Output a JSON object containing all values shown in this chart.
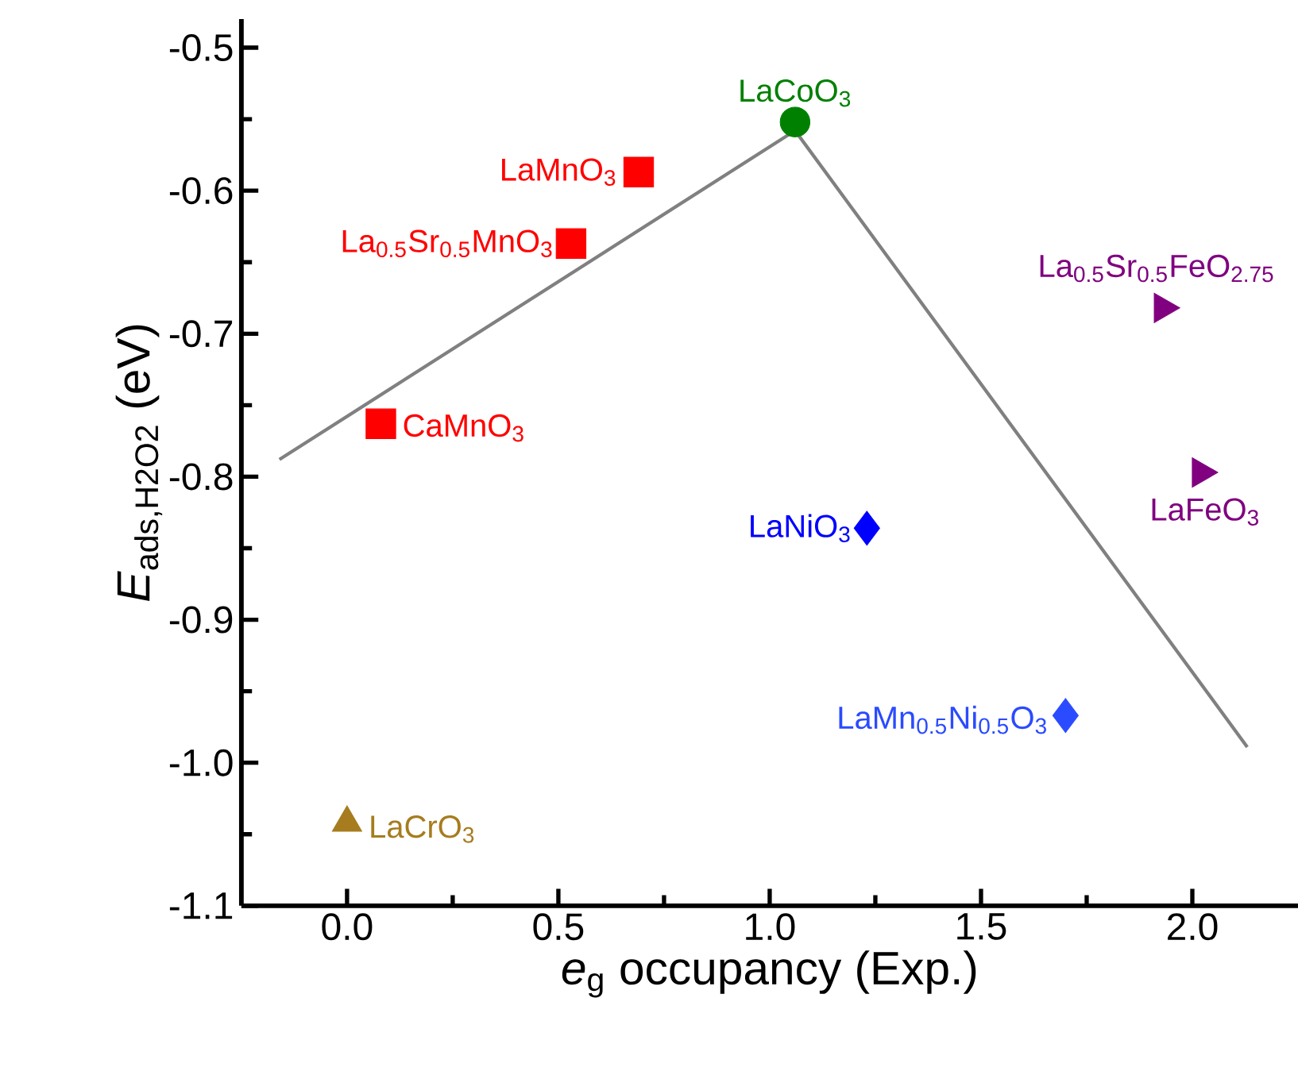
{
  "chart_data": {
    "type": "scatter",
    "xlabel": "*e*$_{g}$ occupancy (Exp.)",
    "ylabel": "*E*$_{ads,H2O2}$ (eV)",
    "xlim": [
      -0.25,
      2.25
    ],
    "ylim": [
      -1.1,
      -0.48
    ],
    "xticks": [
      {
        "value": 0,
        "label": "0.0"
      },
      0.5,
      {
        "value": 1,
        "label": "1.0"
      },
      1.5,
      {
        "value": 2,
        "label": "2.0"
      }
    ],
    "yticks": [
      {
        "value": -1.1,
        "label": "-1.1"
      },
      {
        "value": -1.0,
        "label": "-1.0"
      },
      -0.9,
      -0.8,
      -0.7,
      -0.6,
      -0.5
    ],
    "series": [
      {
        "type": "line",
        "color": "#808080",
        "marker": "none",
        "x": [
          -0.16,
          1.06,
          2.13
        ],
        "values": [
          -0.788,
          -0.558,
          -0.989
        ]
      },
      {
        "name": "LaMnO$_{3}$",
        "color": "#ff0000",
        "marker": "square",
        "x": [
          0.69
        ],
        "values": [
          -0.587
        ]
      },
      {
        "name": "La$_{0.5}$Sr$_{0.5}$MnO$_{3}$",
        "color": "#ff0000",
        "marker": "square",
        "x": [
          0.53
        ],
        "values": [
          -0.637
        ]
      },
      {
        "name": "CaMnO$_{3}$",
        "color": "#ff0000",
        "marker": "square",
        "x": [
          0.08
        ],
        "values": [
          -0.763
        ]
      },
      {
        "name": "LaCoO$_{3}$",
        "color": "#008000",
        "marker": "circle",
        "x": [
          1.06
        ],
        "values": [
          -0.552
        ]
      },
      {
        "name": "La$_{0.5}$Sr$_{0.5}$FeO$_{2.75}$",
        "color": "#800080",
        "marker": "triangle",
        "x": [
          1.93
        ],
        "values": [
          -0.682
        ]
      },
      {
        "name": "LaFeO$_{3}$",
        "color": "#800080",
        "marker": "triangle",
        "x": [
          2.02
        ],
        "values": [
          -0.797
        ]
      },
      {
        "name": "LaNiO$_{3}$",
        "color": "#0000ff",
        "marker": "diamond",
        "x": [
          1.23
        ],
        "values": [
          -0.836
        ]
      },
      {
        "name": "LaMn$_{0.5}$Ni$_{0.5}$O$_{3}$",
        "color": "#2a4bff",
        "marker": "diamond",
        "x": [
          1.7
        ],
        "values": [
          -0.967
        ]
      },
      {
        "name": "LaCrO$_{3}$",
        "color": "#a67c1e",
        "marker": "triangle",
        "x": [
          0.0
        ],
        "values": [
          -1.042
        ]
      }
    ]
  }
}
